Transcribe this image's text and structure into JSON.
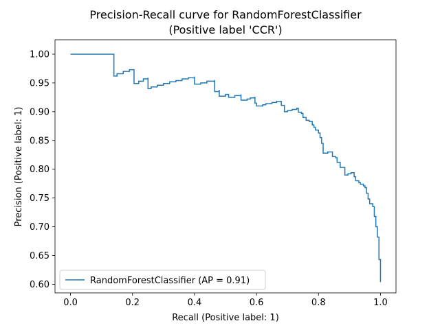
{
  "chart_data": {
    "type": "line",
    "title": "Precision-Recall curve for RandomForestClassifier",
    "subtitle": "(Positive label 'CCR')",
    "xlabel": "Recall (Positive label: 1)",
    "ylabel": "Precision (Positive label: 1)",
    "xlim": [
      -0.05,
      1.05
    ],
    "ylim": [
      0.585,
      1.025
    ],
    "x_ticks": [
      0.0,
      0.2,
      0.4,
      0.6,
      0.8,
      1.0
    ],
    "x_tick_labels": [
      "0.0",
      "0.2",
      "0.4",
      "0.6",
      "0.8",
      "1.0"
    ],
    "y_ticks": [
      0.6,
      0.65,
      0.7,
      0.75,
      0.8,
      0.85,
      0.9,
      0.95,
      1.0
    ],
    "y_tick_labels": [
      "0.60",
      "0.65",
      "0.70",
      "0.75",
      "0.80",
      "0.85",
      "0.90",
      "0.95",
      "1.00"
    ],
    "grid": false,
    "legend_position": "lower-left",
    "series": [
      {
        "name": "RandomForestClassifier (AP = 0.91)",
        "color": "#1f77b4",
        "step": true,
        "points": [
          [
            0.0,
            1.0
          ],
          [
            0.14,
            1.0
          ],
          [
            0.14,
            0.962
          ],
          [
            0.15,
            0.966
          ],
          [
            0.17,
            0.97
          ],
          [
            0.19,
            0.973
          ],
          [
            0.205,
            0.973
          ],
          [
            0.205,
            0.949
          ],
          [
            0.22,
            0.953
          ],
          [
            0.235,
            0.957
          ],
          [
            0.25,
            0.959
          ],
          [
            0.25,
            0.94
          ],
          [
            0.26,
            0.943
          ],
          [
            0.28,
            0.946
          ],
          [
            0.3,
            0.949
          ],
          [
            0.32,
            0.952
          ],
          [
            0.34,
            0.954
          ],
          [
            0.36,
            0.957
          ],
          [
            0.38,
            0.959
          ],
          [
            0.4,
            0.961
          ],
          [
            0.4,
            0.948
          ],
          [
            0.42,
            0.95
          ],
          [
            0.44,
            0.953
          ],
          [
            0.465,
            0.955
          ],
          [
            0.465,
            0.935
          ],
          [
            0.48,
            0.938
          ],
          [
            0.48,
            0.927
          ],
          [
            0.5,
            0.93
          ],
          [
            0.51,
            0.925
          ],
          [
            0.53,
            0.928
          ],
          [
            0.55,
            0.93
          ],
          [
            0.55,
            0.92
          ],
          [
            0.57,
            0.922
          ],
          [
            0.58,
            0.924
          ],
          [
            0.595,
            0.926
          ],
          [
            0.595,
            0.915
          ],
          [
            0.6,
            0.91
          ],
          [
            0.62,
            0.912
          ],
          [
            0.63,
            0.914
          ],
          [
            0.65,
            0.916
          ],
          [
            0.665,
            0.918
          ],
          [
            0.68,
            0.918
          ],
          [
            0.68,
            0.911
          ],
          [
            0.69,
            0.9
          ],
          [
            0.7,
            0.902
          ],
          [
            0.715,
            0.904
          ],
          [
            0.73,
            0.906
          ],
          [
            0.735,
            0.906
          ],
          [
            0.735,
            0.899
          ],
          [
            0.745,
            0.897
          ],
          [
            0.75,
            0.89
          ],
          [
            0.76,
            0.885
          ],
          [
            0.77,
            0.883
          ],
          [
            0.78,
            0.877
          ],
          [
            0.785,
            0.873
          ],
          [
            0.79,
            0.868
          ],
          [
            0.8,
            0.863
          ],
          [
            0.805,
            0.855
          ],
          [
            0.81,
            0.845
          ],
          [
            0.815,
            0.828
          ],
          [
            0.83,
            0.83
          ],
          [
            0.84,
            0.83
          ],
          [
            0.845,
            0.822
          ],
          [
            0.855,
            0.82
          ],
          [
            0.86,
            0.812
          ],
          [
            0.87,
            0.81
          ],
          [
            0.87,
            0.803
          ],
          [
            0.885,
            0.79
          ],
          [
            0.895,
            0.792
          ],
          [
            0.905,
            0.794
          ],
          [
            0.915,
            0.794
          ],
          [
            0.915,
            0.787
          ],
          [
            0.92,
            0.78
          ],
          [
            0.93,
            0.777
          ],
          [
            0.935,
            0.774
          ],
          [
            0.945,
            0.771
          ],
          [
            0.95,
            0.768
          ],
          [
            0.955,
            0.758
          ],
          [
            0.96,
            0.748
          ],
          [
            0.965,
            0.74
          ],
          [
            0.975,
            0.735
          ],
          [
            0.98,
            0.718
          ],
          [
            0.985,
            0.7
          ],
          [
            0.99,
            0.69
          ],
          [
            0.99,
            0.682
          ],
          [
            0.995,
            0.68
          ],
          [
            0.995,
            0.643
          ],
          [
            1.0,
            0.643
          ],
          [
            1.0,
            0.604
          ]
        ]
      }
    ]
  }
}
